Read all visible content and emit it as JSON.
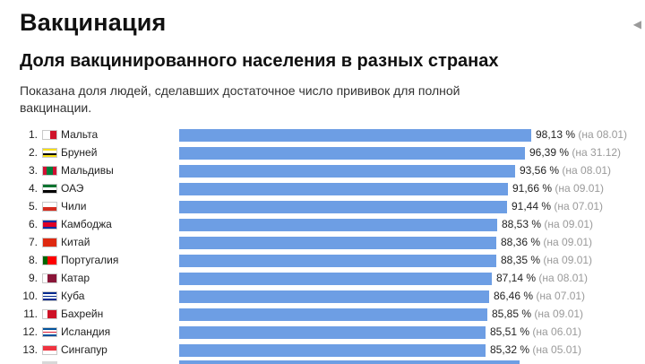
{
  "header": {
    "title": "Вакцинация",
    "corner_icon": "share-icon"
  },
  "chart_data": {
    "type": "bar",
    "orientation": "horizontal",
    "title": "Доля вакцинированного населения в разных странах",
    "subtitle": "Показана доля людей, сделавших достаточное число прививок для полной вакцинации.",
    "unit": "%",
    "bar_color": "#6d9ee4",
    "rows": [
      {
        "rank": "1.",
        "country": "Мальта",
        "value": 98.13,
        "value_label": "98,13 %",
        "date_label": "(на 08.01)",
        "flag": [
          "#ffffff",
          "#cf142b"
        ],
        "flag_dir": "h"
      },
      {
        "rank": "2.",
        "country": "Бруней",
        "value": 96.39,
        "value_label": "96,39 %",
        "date_label": "(на 31.12)",
        "flag": [
          "#f7e017",
          "#ffffff",
          "#000000",
          "#f7e017"
        ],
        "flag_dir": "v"
      },
      {
        "rank": "3.",
        "country": "Мальдивы",
        "value": 93.56,
        "value_label": "93,56 %",
        "date_label": "(на 08.01)",
        "flag": [
          "#d21034",
          "#007e3a",
          "#007e3a",
          "#d21034"
        ],
        "flag_dir": "h"
      },
      {
        "rank": "4.",
        "country": "ОАЭ",
        "value": 91.66,
        "value_label": "91,66 %",
        "date_label": "(на 09.01)",
        "flag": [
          "#00732f",
          "#ffffff",
          "#000000"
        ],
        "flag_dir": "v"
      },
      {
        "rank": "5.",
        "country": "Чили",
        "value": 91.44,
        "value_label": "91,44 %",
        "date_label": "(на 07.01)",
        "flag": [
          "#ffffff",
          "#d52b1e"
        ],
        "flag_dir": "v"
      },
      {
        "rank": "6.",
        "country": "Камбоджа",
        "value": 88.53,
        "value_label": "88,53 %",
        "date_label": "(на 09.01)",
        "flag": [
          "#032ea1",
          "#e00025",
          "#e00025",
          "#032ea1"
        ],
        "flag_dir": "v"
      },
      {
        "rank": "7.",
        "country": "Китай",
        "value": 88.36,
        "value_label": "88,36 %",
        "date_label": "(на 09.01)",
        "flag": [
          "#de2910"
        ],
        "flag_dir": "v"
      },
      {
        "rank": "8.",
        "country": "Португалия",
        "value": 88.35,
        "value_label": "88,35 %",
        "date_label": "(на 09.01)",
        "flag": [
          "#006600",
          "#ff0000",
          "#ff0000"
        ],
        "flag_dir": "h"
      },
      {
        "rank": "9.",
        "country": "Катар",
        "value": 87.14,
        "value_label": "87,14 %",
        "date_label": "(на 08.01)",
        "flag": [
          "#ffffff",
          "#8a1538",
          "#8a1538"
        ],
        "flag_dir": "h"
      },
      {
        "rank": "10.",
        "country": "Куба",
        "value": 86.46,
        "value_label": "86,46 %",
        "date_label": "(на 07.01)",
        "flag": [
          "#002a8f",
          "#ffffff",
          "#002a8f",
          "#ffffff",
          "#002a8f"
        ],
        "flag_dir": "v"
      },
      {
        "rank": "11.",
        "country": "Бахрейн",
        "value": 85.85,
        "value_label": "85,85 %",
        "date_label": "(на 09.01)",
        "flag": [
          "#ffffff",
          "#ce1126",
          "#ce1126"
        ],
        "flag_dir": "h"
      },
      {
        "rank": "12.",
        "country": "Исландия",
        "value": 85.51,
        "value_label": "85,51 %",
        "date_label": "(на 06.01)",
        "flag": [
          "#02529c",
          "#ffffff",
          "#dc1e35",
          "#ffffff",
          "#02529c"
        ],
        "flag_dir": "v"
      },
      {
        "rank": "13.",
        "country": "Сингапур",
        "value": 85.32,
        "value_label": "85,32 %",
        "date_label": "(на 05.01)",
        "flag": [
          "#ef3340",
          "#ffffff"
        ],
        "flag_dir": "v"
      }
    ]
  }
}
